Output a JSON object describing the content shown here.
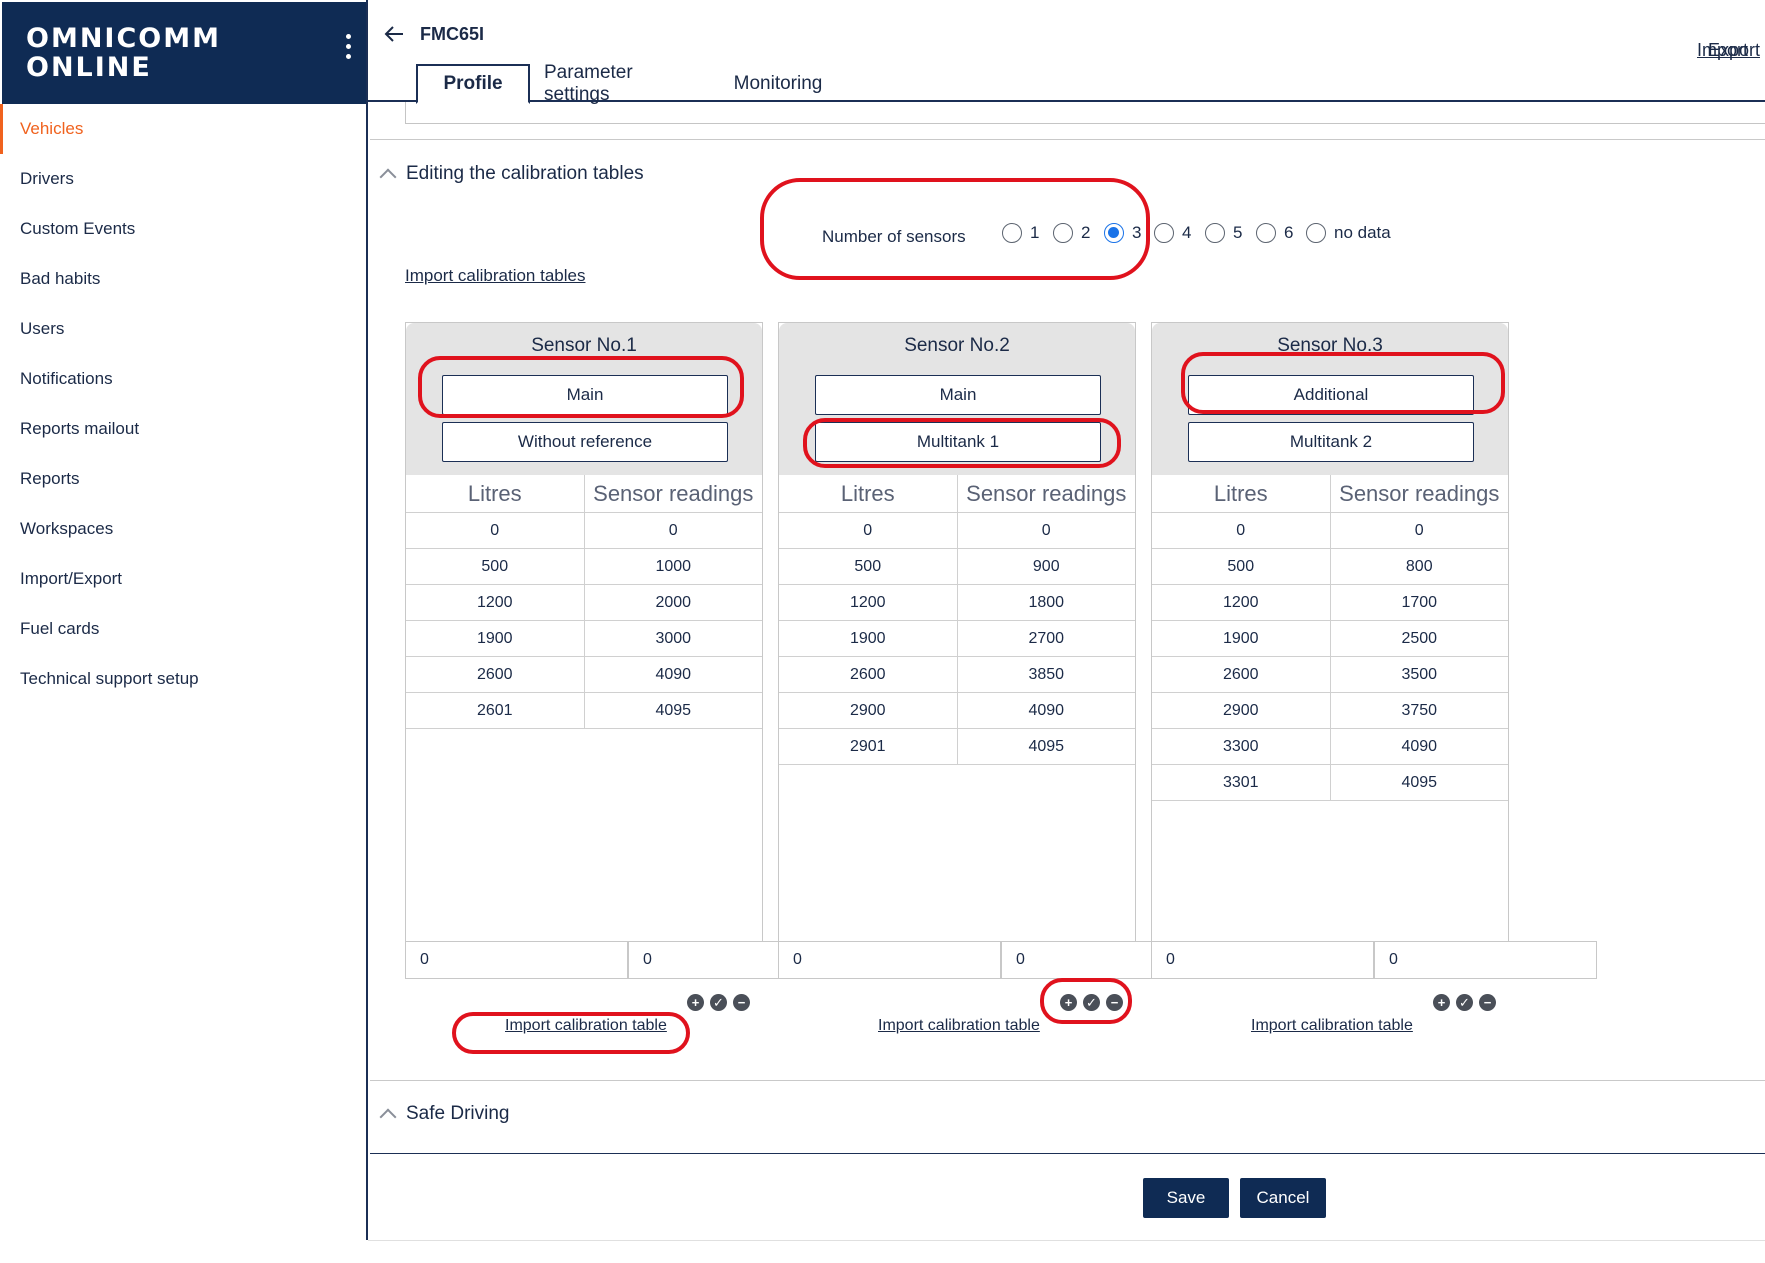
{
  "app": {
    "logo_line1": "OMNICOMM",
    "logo_line2": "ONLINE"
  },
  "sidebar": {
    "items": [
      {
        "label": "Vehicles",
        "active": true
      },
      {
        "label": "Drivers"
      },
      {
        "label": "Custom Events"
      },
      {
        "label": "Bad habits"
      },
      {
        "label": "Users"
      },
      {
        "label": "Notifications"
      },
      {
        "label": "Reports mailout"
      },
      {
        "label": "Reports"
      },
      {
        "label": "Workspaces"
      },
      {
        "label": "Import/Export"
      },
      {
        "label": "Fuel cards"
      },
      {
        "label": "Technical support setup"
      }
    ]
  },
  "header": {
    "vehicle": "FMC65І",
    "import_label": "Import",
    "export_label": "Export",
    "tabs": [
      {
        "label": "Profile",
        "active": true
      },
      {
        "label": "Parameter settings"
      },
      {
        "label": "Monitoring"
      }
    ]
  },
  "calibration": {
    "section_title": "Editing the calibration tables",
    "sensors_label": "Number of sensors",
    "options": [
      "1",
      "2",
      "3",
      "4",
      "5",
      "6",
      "no data"
    ],
    "selected": "3",
    "import_tables_label": "Import calibration tables",
    "col_litres": "Litres",
    "col_readings": "Sensor readings",
    "import_table_label": "Import calibration table",
    "sensors": [
      {
        "title": "Sensor No.1",
        "button1": "Main",
        "button2": "Without reference",
        "rows": [
          [
            "0",
            "0"
          ],
          [
            "500",
            "1000"
          ],
          [
            "1200",
            "2000"
          ],
          [
            "1900",
            "3000"
          ],
          [
            "2600",
            "4090"
          ],
          [
            "2601",
            "4095"
          ]
        ],
        "input_litres": "0",
        "input_readings": "0"
      },
      {
        "title": "Sensor No.2",
        "button1": "Main",
        "button2": "Multitank 1",
        "rows": [
          [
            "0",
            "0"
          ],
          [
            "500",
            "900"
          ],
          [
            "1200",
            "1800"
          ],
          [
            "1900",
            "2700"
          ],
          [
            "2600",
            "3850"
          ],
          [
            "2900",
            "4090"
          ],
          [
            "2901",
            "4095"
          ]
        ],
        "input_litres": "0",
        "input_readings": "0"
      },
      {
        "title": "Sensor No.3",
        "button1": "Additional",
        "button2": "Multitank 2",
        "rows": [
          [
            "0",
            "0"
          ],
          [
            "500",
            "800"
          ],
          [
            "1200",
            "1700"
          ],
          [
            "1900",
            "2500"
          ],
          [
            "2600",
            "3500"
          ],
          [
            "2900",
            "3750"
          ],
          [
            "3300",
            "4090"
          ],
          [
            "3301",
            "4095"
          ]
        ],
        "input_litres": "0",
        "input_readings": "0"
      }
    ]
  },
  "safe_driving": {
    "title": "Safe Driving"
  },
  "footer": {
    "save_label": "Save",
    "cancel_label": "Cancel"
  },
  "colors": {
    "brand": "#0f2b54",
    "active_nav": "#f0621e",
    "annotation": "#e0121d",
    "radio_accent": "#1a73e8"
  }
}
